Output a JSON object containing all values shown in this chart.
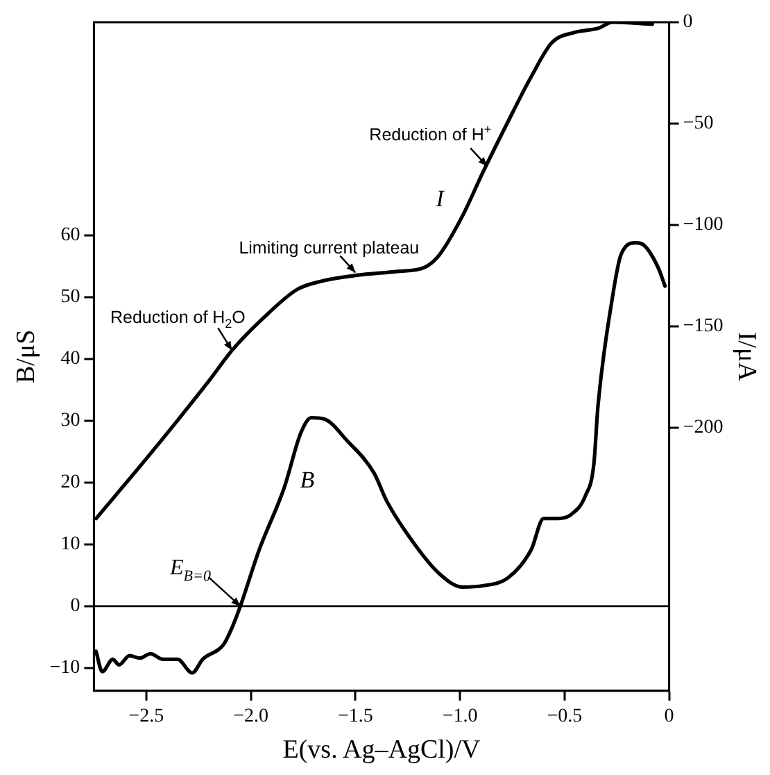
{
  "chart_data": {
    "type": "line",
    "xlabel": "E(vs. Ag–AgCl)/V",
    "ylabel": "B/μS",
    "y2label": "I/μA",
    "xlim": [
      -2.75,
      0
    ],
    "xticks": [
      {
        "value": -2.5,
        "label": "−2.5"
      },
      {
        "value": -2,
        "label": "−2.0"
      },
      {
        "value": -1.5,
        "label": "−1.5"
      },
      {
        "value": -1,
        "label": "−1.0"
      },
      {
        "value": -0.5,
        "label": "−0.5"
      },
      0
    ],
    "ylim": [
      -13.7,
      94.5
    ],
    "yticks": [
      {
        "value": -10,
        "label": "−10"
      },
      0,
      10,
      20,
      30,
      40,
      50,
      60
    ],
    "y2lim": [
      -330,
      0
    ],
    "y2ticks": [
      0,
      {
        "value": -50,
        "label": "−50"
      },
      {
        "value": -100,
        "label": "−100"
      },
      {
        "value": -150,
        "label": "−150"
      },
      {
        "value": -200,
        "label": "−200"
      }
    ],
    "series": [
      {
        "name": "I",
        "color": "#000000",
        "axis": "y2",
        "x": [
          -2.74,
          -2.48,
          -2.2,
          -2.09,
          -1.94,
          -1.78,
          -1.67,
          -1.5,
          -1.3,
          -1.17,
          -1.1,
          -0.99,
          -0.89,
          -0.77,
          -0.66,
          -0.56,
          -0.45,
          -0.34,
          -0.27,
          -0.08
        ],
        "values": [
          -245,
          -213,
          -177,
          -162,
          -146,
          -132,
          -128,
          -125,
          -123,
          -121,
          -115,
          -96,
          -74,
          -49,
          -27,
          -10,
          -5,
          -3,
          0,
          -1
        ]
      },
      {
        "name": "B",
        "color": "#000000",
        "x": [
          -2.74,
          -2.71,
          -2.66,
          -2.63,
          -2.58,
          -2.53,
          -2.48,
          -2.42,
          -2.35,
          -2.28,
          -2.23,
          -2.13,
          -2.09,
          -2.05,
          -1.96,
          -1.84,
          -1.76,
          -1.71,
          -1.65,
          -1.54,
          -1.41,
          -1.35,
          -1.21,
          -1.1,
          -0.99,
          -0.89,
          -0.77,
          -0.66,
          -0.6,
          -0.53,
          -0.47,
          -0.4,
          -0.36,
          -0.34,
          -0.27,
          -0.23,
          -0.16,
          -0.12,
          -0.05,
          -0.02
        ],
        "values": [
          -7.3,
          -10.6,
          -8.6,
          -9.5,
          -8,
          -8.4,
          -7.7,
          -8.6,
          -8.6,
          -10.8,
          -8.6,
          -6.2,
          -3.5,
          0,
          9.1,
          19.2,
          28.1,
          30.5,
          30.3,
          26.8,
          21.5,
          17,
          9.7,
          5.3,
          3.1,
          3.3,
          4.6,
          9.1,
          14.2,
          14.2,
          14.8,
          17.9,
          23,
          32.5,
          50.2,
          56.9,
          58.8,
          58.4,
          54.6,
          51.8
        ]
      }
    ],
    "ref_lines": [
      {
        "axis": "y",
        "value": 0
      }
    ],
    "annotations": [
      {
        "text": "Reduction of H$_{2}$O",
        "x": -2.09,
        "y": 41.4
      },
      {
        "text": "Limiting current plateau",
        "x": -1.5,
        "y": 54
      },
      {
        "text": "Reduction of H$^{+}$",
        "x": -0.87,
        "y": 71.2
      },
      {
        "text": "E$_{B=0}$",
        "x": -2.05,
        "y": 0
      }
    ],
    "grid": false,
    "legend": false,
    "marker": "none",
    "line_style": "solid"
  }
}
